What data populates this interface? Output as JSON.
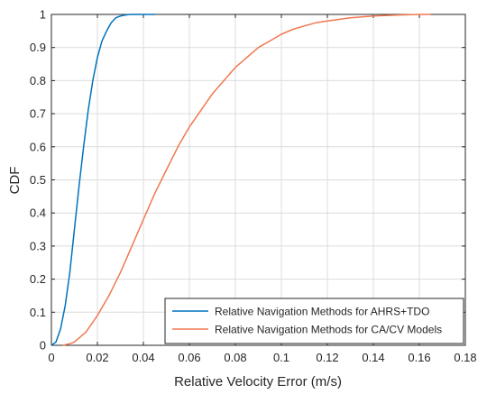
{
  "chart_data": {
    "type": "line",
    "title": "",
    "xlabel": "Relative Velocity Error (m/s)",
    "ylabel": "CDF",
    "xlim": [
      0,
      0.18
    ],
    "ylim": [
      0,
      1
    ],
    "xticks": [
      0,
      0.02,
      0.04,
      0.06,
      0.08,
      0.1,
      0.12,
      0.14,
      0.16,
      0.18
    ],
    "xtick_labels": [
      "0",
      "0.02",
      "0.04",
      "0.06",
      "0.08",
      "0.1",
      "0.12",
      "0.14",
      "0.16",
      "0.18"
    ],
    "yticks": [
      0,
      0.1,
      0.2,
      0.3,
      0.4,
      0.5,
      0.6,
      0.7,
      0.8,
      0.9,
      1
    ],
    "ytick_labels": [
      "0",
      "0.1",
      "0.2",
      "0.3",
      "0.4",
      "0.5",
      "0.6",
      "0.7",
      "0.8",
      "0.9",
      "1"
    ],
    "grid": true,
    "legend_position": "bottom-right",
    "series": [
      {
        "name": "Relative Navigation Methods for AHRS+TDO",
        "color": "#0072BD",
        "x": [
          0,
          0.002,
          0.004,
          0.006,
          0.008,
          0.01,
          0.012,
          0.014,
          0.016,
          0.018,
          0.02,
          0.022,
          0.024,
          0.026,
          0.028,
          0.03,
          0.032,
          0.034,
          0.036,
          0.04,
          0.045
        ],
        "y": [
          0,
          0.01,
          0.05,
          0.12,
          0.22,
          0.35,
          0.48,
          0.6,
          0.71,
          0.8,
          0.87,
          0.92,
          0.95,
          0.975,
          0.99,
          0.995,
          0.998,
          1.0,
          1.0,
          1.0,
          1.0
        ]
      },
      {
        "name": "Relative Navigation Methods for CA/CV Models",
        "color": "#F07850",
        "x": [
          0.005,
          0.008,
          0.01,
          0.015,
          0.02,
          0.025,
          0.03,
          0.035,
          0.04,
          0.045,
          0.05,
          0.055,
          0.06,
          0.065,
          0.07,
          0.075,
          0.08,
          0.085,
          0.09,
          0.095,
          0.1,
          0.105,
          0.11,
          0.115,
          0.12,
          0.125,
          0.13,
          0.14,
          0.15,
          0.16,
          0.165
        ],
        "y": [
          0,
          0.005,
          0.01,
          0.04,
          0.09,
          0.15,
          0.22,
          0.3,
          0.38,
          0.46,
          0.53,
          0.6,
          0.66,
          0.71,
          0.76,
          0.8,
          0.84,
          0.87,
          0.9,
          0.92,
          0.94,
          0.955,
          0.965,
          0.975,
          0.98,
          0.985,
          0.99,
          0.995,
          0.998,
          1.0,
          1.0
        ]
      }
    ]
  }
}
